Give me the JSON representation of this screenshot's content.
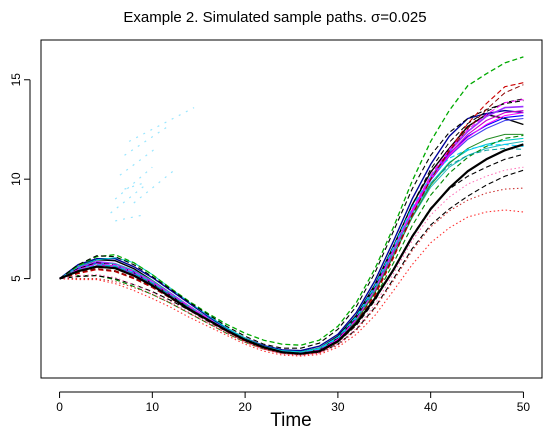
{
  "chart_data": {
    "type": "line",
    "title": "Example 2. Simulated sample paths. σ=0.025",
    "xlabel": "Time",
    "ylabel": "",
    "xlim": [
      -2.0,
      52.0
    ],
    "ylim": [
      0.0,
      17.0
    ],
    "x_ticks": [
      0,
      10,
      20,
      30,
      40,
      50
    ],
    "y_ticks": [
      5,
      10,
      15
    ],
    "x_tick_labels": [
      "0",
      "10",
      "20",
      "30",
      "40",
      "50"
    ],
    "y_tick_labels": [
      "5",
      "10",
      "15"
    ],
    "grid": false,
    "legend": "none",
    "base_curve": {
      "x": [
        0,
        2,
        4,
        6,
        8,
        10,
        12,
        14,
        16,
        18,
        20,
        22,
        24,
        26,
        28,
        30,
        32,
        34,
        36,
        38,
        40,
        42,
        44,
        46,
        48,
        50
      ],
      "y": [
        5.0,
        5.25,
        5.4,
        5.3,
        5.0,
        4.6,
        4.1,
        3.55,
        3.0,
        2.45,
        1.95,
        1.55,
        1.3,
        1.2,
        1.3,
        1.75,
        2.6,
        3.9,
        5.6,
        7.4,
        8.9,
        9.95,
        10.7,
        11.2,
        11.55,
        11.75
      ]
    },
    "series": [
      {
        "color": "#000000",
        "dash": "solid",
        "width": 2.2,
        "offsets": [
          0.0,
          0.12,
          0.2,
          0.22,
          0.15,
          0.05,
          -0.05,
          -0.1,
          -0.08,
          -0.05,
          -0.03,
          0.0,
          0.0,
          0.02,
          0.05,
          0.1,
          0.15,
          0.1,
          -0.15,
          -0.3,
          -0.4,
          -0.4,
          -0.3,
          -0.2,
          -0.1,
          0.0
        ]
      },
      {
        "color": "#000000",
        "dash": "solid",
        "width": 1.4,
        "offsets": [
          0.0,
          0.35,
          0.55,
          0.6,
          0.5,
          0.3,
          0.15,
          0.05,
          0.0,
          0.0,
          0.02,
          0.05,
          0.08,
          0.12,
          0.2,
          0.35,
          0.55,
          0.8,
          1.05,
          1.3,
          1.45,
          1.6,
          1.95,
          2.05,
          1.5,
          1.0
        ]
      },
      {
        "color": "#000099",
        "dash": "solid",
        "width": 1.4,
        "offsets": [
          0.0,
          0.45,
          0.6,
          0.7,
          0.6,
          0.45,
          0.3,
          0.2,
          0.1,
          0.05,
          0.05,
          0.08,
          0.12,
          0.18,
          0.3,
          0.45,
          0.7,
          1.0,
          1.3,
          1.6,
          1.85,
          2.2,
          2.35,
          2.1,
          1.9,
          1.6
        ]
      },
      {
        "color": "#0000ff",
        "dash": "solid",
        "width": 1.1,
        "offsets": [
          0.0,
          0.25,
          0.4,
          0.45,
          0.35,
          0.2,
          0.1,
          0.05,
          0.0,
          -0.05,
          -0.05,
          -0.03,
          0.0,
          0.05,
          0.12,
          0.25,
          0.45,
          0.65,
          0.85,
          1.05,
          1.2,
          1.35,
          1.45,
          1.5,
          1.55,
          1.45
        ]
      },
      {
        "color": "#4444ee",
        "dash": "solid",
        "width": 1.1,
        "offsets": [
          0.0,
          0.2,
          0.35,
          0.3,
          0.25,
          0.15,
          0.05,
          0.0,
          -0.05,
          -0.05,
          -0.05,
          -0.05,
          -0.03,
          0.0,
          0.08,
          0.2,
          0.35,
          0.5,
          0.7,
          0.9,
          1.05,
          1.2,
          1.3,
          1.35,
          1.4,
          1.3
        ]
      },
      {
        "color": "#9b30ff",
        "dash": "solid",
        "width": 1.6,
        "offsets": [
          0.0,
          0.3,
          0.45,
          0.45,
          0.4,
          0.25,
          0.15,
          0.05,
          0.0,
          -0.02,
          -0.02,
          0.0,
          0.03,
          0.08,
          0.15,
          0.25,
          0.4,
          0.6,
          0.8,
          1.0,
          1.2,
          1.45,
          1.7,
          1.95,
          2.05,
          1.9
        ]
      },
      {
        "color": "#cc00cc",
        "dash": "solid",
        "width": 1.1,
        "offsets": [
          0.0,
          0.15,
          0.25,
          0.35,
          0.3,
          0.2,
          0.05,
          -0.05,
          -0.1,
          -0.1,
          -0.1,
          -0.08,
          -0.05,
          0.0,
          0.05,
          0.15,
          0.3,
          0.5,
          0.7,
          0.9,
          1.1,
          1.3,
          1.55,
          1.75,
          1.8,
          1.7
        ]
      },
      {
        "color": "#ff00ff",
        "dash": "solid",
        "width": 1.0,
        "offsets": [
          0.0,
          0.1,
          0.2,
          0.25,
          0.2,
          0.1,
          0.0,
          -0.05,
          -0.05,
          -0.05,
          -0.03,
          0.0,
          0.03,
          0.05,
          0.1,
          0.2,
          0.35,
          0.55,
          0.75,
          0.95,
          1.1,
          1.25,
          1.4,
          1.55,
          1.65,
          1.6
        ]
      },
      {
        "color": "#00cccc",
        "dash": "solid",
        "width": 1.0,
        "offsets": [
          0.0,
          0.35,
          0.55,
          0.75,
          0.8,
          0.6,
          0.4,
          0.25,
          0.15,
          0.08,
          0.05,
          0.05,
          0.08,
          0.12,
          0.2,
          0.3,
          0.45,
          0.6,
          0.75,
          0.85,
          0.9,
          0.9,
          0.75,
          0.55,
          0.4,
          0.3
        ]
      },
      {
        "color": "#22bbbb",
        "dash": "solid",
        "width": 1.0,
        "offsets": [
          0.0,
          0.2,
          0.35,
          0.45,
          0.4,
          0.3,
          0.15,
          0.05,
          0.0,
          0.0,
          0.0,
          0.02,
          0.05,
          0.1,
          0.15,
          0.25,
          0.35,
          0.45,
          0.55,
          0.65,
          0.7,
          0.65,
          0.5,
          0.35,
          0.2,
          0.15
        ]
      },
      {
        "color": "#228b22",
        "dash": "solid",
        "width": 1.0,
        "offsets": [
          0.0,
          0.1,
          0.2,
          0.2,
          0.15,
          0.05,
          -0.05,
          -0.1,
          -0.1,
          -0.1,
          -0.08,
          -0.05,
          -0.03,
          0.0,
          0.05,
          0.12,
          0.25,
          0.4,
          0.55,
          0.7,
          0.8,
          0.85,
          0.85,
          0.8,
          0.7,
          0.5
        ]
      },
      {
        "color": "#00aa00",
        "dash": "dashed",
        "width": 1.3,
        "offsets": [
          0.0,
          0.4,
          0.7,
          0.9,
          0.8,
          0.6,
          0.4,
          0.3,
          0.25,
          0.25,
          0.3,
          0.35,
          0.4,
          0.45,
          0.6,
          0.85,
          1.2,
          1.6,
          2.0,
          2.5,
          3.0,
          3.5,
          4.0,
          4.1,
          4.3,
          4.4
        ]
      },
      {
        "color": "#008800",
        "dash": "dashed",
        "width": 1.1,
        "offsets": [
          0.0,
          -0.1,
          -0.25,
          -0.35,
          -0.4,
          -0.4,
          -0.35,
          -0.3,
          -0.25,
          -0.2,
          -0.15,
          -0.1,
          -0.05,
          0.0,
          0.02,
          0.05,
          0.1,
          0.15,
          0.2,
          0.25,
          0.3,
          0.35,
          0.4,
          0.45,
          0.5,
          0.45
        ]
      },
      {
        "color": "#000000",
        "dash": "dashed",
        "width": 1.1,
        "offsets": [
          0.0,
          0.45,
          0.75,
          0.8,
          0.7,
          0.5,
          0.35,
          0.25,
          0.2,
          0.15,
          0.15,
          0.15,
          0.2,
          0.3,
          0.45,
          0.7,
          1.0,
          1.4,
          1.8,
          2.1,
          2.3,
          2.4,
          2.35,
          2.3,
          2.25,
          2.2
        ]
      },
      {
        "color": "#000000",
        "dash": "dashed",
        "width": 1.1,
        "offsets": [
          0.0,
          -0.15,
          -0.25,
          -0.3,
          -0.3,
          -0.25,
          -0.2,
          -0.15,
          -0.1,
          -0.05,
          0.0,
          0.0,
          0.0,
          0.0,
          0.0,
          -0.05,
          -0.15,
          -0.35,
          -0.6,
          -0.9,
          -1.2,
          -1.45,
          -1.55,
          -1.5,
          -1.4,
          -1.3
        ]
      },
      {
        "color": "#000000",
        "dash": "dashed",
        "width": 1.1,
        "offsets": [
          0.0,
          0.05,
          0.1,
          0.05,
          0.0,
          -0.05,
          -0.1,
          -0.15,
          -0.15,
          -0.12,
          -0.1,
          -0.08,
          -0.05,
          -0.03,
          0.0,
          0.05,
          0.05,
          0.0,
          -0.1,
          -0.25,
          -0.35,
          -0.45,
          -0.55,
          -0.6,
          -0.55,
          -0.5
        ]
      },
      {
        "color": "#000000",
        "dash": "dashed",
        "width": 1.0,
        "offsets": [
          0.0,
          0.25,
          0.4,
          0.4,
          0.3,
          0.15,
          0.05,
          -0.05,
          -0.1,
          -0.1,
          -0.08,
          -0.05,
          0.0,
          0.05,
          0.12,
          0.25,
          0.45,
          0.7,
          1.0,
          1.3,
          1.6,
          1.9,
          2.1,
          2.2,
          2.3,
          2.3
        ]
      },
      {
        "color": "#cc0000",
        "dash": "dashed",
        "width": 1.1,
        "offsets": [
          0.0,
          0.0,
          0.05,
          0.05,
          0.0,
          -0.05,
          -0.1,
          -0.12,
          -0.12,
          -0.1,
          -0.1,
          -0.08,
          -0.05,
          -0.02,
          0.0,
          0.05,
          0.1,
          0.25,
          0.45,
          0.75,
          1.1,
          1.5,
          2.1,
          2.6,
          3.1,
          3.1
        ]
      },
      {
        "color": "#ff3030",
        "dash": "dotted",
        "width": 1.1,
        "offsets": [
          0.0,
          -0.3,
          -0.45,
          -0.55,
          -0.6,
          -0.6,
          -0.55,
          -0.5,
          -0.4,
          -0.3,
          -0.25,
          -0.2,
          -0.15,
          -0.1,
          -0.12,
          -0.2,
          -0.4,
          -0.75,
          -1.2,
          -1.7,
          -2.1,
          -2.4,
          -2.6,
          -2.85,
          -3.1,
          -3.4
        ]
      },
      {
        "color": "#cc3333",
        "dash": "dotted",
        "width": 1.1,
        "offsets": [
          0.0,
          -0.25,
          -0.4,
          -0.45,
          -0.45,
          -0.4,
          -0.35,
          -0.3,
          -0.25,
          -0.2,
          -0.15,
          -0.1,
          -0.08,
          -0.05,
          -0.05,
          -0.1,
          -0.2,
          -0.4,
          -0.7,
          -1.0,
          -1.3,
          -1.55,
          -1.75,
          -1.9,
          -2.05,
          -2.2
        ]
      },
      {
        "color": "#ff69b4",
        "dash": "dotted",
        "width": 1.0,
        "offsets": [
          0.0,
          -0.1,
          -0.2,
          -0.25,
          -0.3,
          -0.3,
          -0.28,
          -0.25,
          -0.2,
          -0.15,
          -0.12,
          -0.1,
          -0.08,
          -0.05,
          -0.05,
          -0.05,
          -0.1,
          -0.2,
          -0.35,
          -0.5,
          -0.7,
          -0.85,
          -0.95,
          -1.05,
          -1.1,
          -1.15
        ]
      },
      {
        "color": "#00ccff",
        "dash": "dashed",
        "width": 1.1,
        "offsets": [
          0.0,
          0.2,
          0.3,
          0.35,
          0.3,
          0.2,
          0.1,
          0.05,
          0.0,
          0.0,
          0.0,
          0.02,
          0.05,
          0.08,
          0.15,
          0.3,
          0.5,
          0.75,
          1.0,
          1.2,
          1.25,
          1.1,
          0.8,
          0.5,
          0.2,
          -0.1
        ]
      },
      {
        "color": "#009999",
        "dash": "dashed",
        "width": 1.0,
        "offsets": [
          0.0,
          0.15,
          0.25,
          0.3,
          0.25,
          0.15,
          0.05,
          0.0,
          -0.03,
          -0.05,
          -0.05,
          -0.03,
          0.0,
          0.03,
          0.1,
          0.2,
          0.35,
          0.55,
          0.7,
          0.85,
          0.9,
          0.75,
          0.5,
          0.25,
          0.0,
          -0.25
        ]
      },
      {
        "color": "#ff00ff",
        "dash": "dashed",
        "width": 1.0,
        "offsets": [
          0.0,
          0.2,
          0.35,
          0.4,
          0.35,
          0.25,
          0.12,
          0.05,
          0.0,
          -0.02,
          -0.02,
          0.0,
          0.02,
          0.05,
          0.1,
          0.2,
          0.35,
          0.55,
          0.8,
          1.05,
          1.3,
          1.55,
          1.8,
          2.05,
          2.3,
          2.25
        ]
      },
      {
        "color": "#8b0000",
        "dash": "dashed",
        "width": 1.0,
        "offsets": [
          0.0,
          0.05,
          0.1,
          0.1,
          0.05,
          0.0,
          -0.05,
          -0.08,
          -0.1,
          -0.1,
          -0.08,
          -0.05,
          -0.03,
          0.0,
          0.05,
          0.1,
          0.2,
          0.35,
          0.55,
          0.8,
          1.1,
          1.45,
          1.85,
          2.3,
          2.8,
          3.0
        ]
      }
    ],
    "ghost_segments": [
      [
        [
          6.0,
          7.9
        ],
        [
          9.0,
          8.2
        ]
      ],
      [
        [
          6.0,
          9.0
        ],
        [
          10.0,
          10.6
        ]
      ],
      [
        [
          6.5,
          10.2
        ],
        [
          10.5,
          11.6
        ]
      ],
      [
        [
          7.0,
          11.2
        ],
        [
          11.5,
          12.6
        ]
      ],
      [
        [
          7.5,
          11.9
        ],
        [
          14.5,
          13.6
        ]
      ],
      [
        [
          5.5,
          8.3
        ],
        [
          9.5,
          9.8
        ]
      ],
      [
        [
          8.0,
          8.8
        ],
        [
          12.5,
          10.5
        ]
      ],
      [
        [
          7.0,
          9.5
        ],
        [
          9.0,
          9.8
        ]
      ]
    ]
  }
}
